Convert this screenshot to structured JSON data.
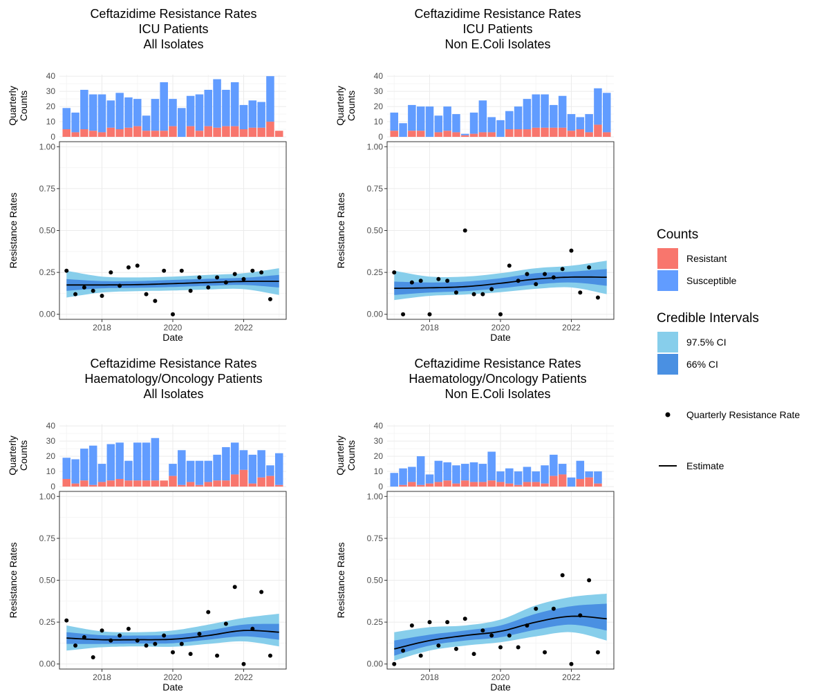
{
  "colors": {
    "resistant": "#F8766D",
    "susceptible": "#619CFF",
    "ci975": "#87CEEB",
    "ci66": "#4A90E2",
    "estimate": "#000000",
    "grid_major": "#EBEBEB",
    "grid_minor": "#F5F5F5"
  },
  "legend": {
    "counts_title": "Counts",
    "resistant_label": "Resistant",
    "susceptible_label": "Susceptible",
    "ci_title": "Credible Intervals",
    "ci975_label": "97.5% CI",
    "ci66_label": "66% CI",
    "points_label": "Quarterly Resistance Rate",
    "estimate_label": "Estimate"
  },
  "chart_data": [
    {
      "type": "bar+line",
      "title": [
        "Ceftazidime Resistance Rates",
        "ICU Patients",
        "All Isolates"
      ],
      "bar_ylabel": [
        "Quarterly",
        "Counts"
      ],
      "xlabel": "Date",
      "ylabel": "Resistance Rates",
      "x_ticks": [
        "2018",
        "2020",
        "2022"
      ],
      "bar_yticks": [
        "0",
        "10",
        "20",
        "30",
        "40"
      ],
      "rate_yticks": [
        "0.00",
        "0.25",
        "0.50",
        "0.75",
        "1.00"
      ],
      "xlim": [
        2016.8,
        2023.2
      ],
      "bar_ylim": [
        0,
        41
      ],
      "rate_ylim": [
        -0.03,
        1.03
      ],
      "quarters": [
        2017.0,
        2017.25,
        2017.5,
        2017.75,
        2018.0,
        2018.25,
        2018.5,
        2018.75,
        2019.0,
        2019.25,
        2019.5,
        2019.75,
        2020.0,
        2020.25,
        2020.5,
        2020.75,
        2021.0,
        2021.25,
        2021.5,
        2021.75,
        2022.0,
        2022.25,
        2022.5,
        2022.75,
        2023.0
      ],
      "resistant": [
        5,
        3,
        5,
        4,
        3,
        6,
        5,
        6,
        7,
        4,
        4,
        4,
        7,
        0,
        7,
        4,
        7,
        6,
        7,
        7,
        5,
        6,
        6,
        10,
        4
      ],
      "susceptible": [
        14,
        13,
        26,
        24,
        25,
        18,
        24,
        20,
        18,
        10,
        21,
        32,
        18,
        19,
        20,
        24,
        24,
        32,
        24,
        29,
        16,
        18,
        17,
        30,
        0
      ],
      "points": [
        [
          2017.0,
          0.26
        ],
        [
          2017.25,
          0.12
        ],
        [
          2017.5,
          0.16
        ],
        [
          2017.75,
          0.14
        ],
        [
          2018.0,
          0.11
        ],
        [
          2018.25,
          0.25
        ],
        [
          2018.5,
          0.17
        ],
        [
          2018.75,
          0.28
        ],
        [
          2019.0,
          0.29
        ],
        [
          2019.25,
          0.12
        ],
        [
          2019.5,
          0.08
        ],
        [
          2019.75,
          0.26
        ],
        [
          2020.0,
          0.0
        ],
        [
          2020.25,
          0.26
        ],
        [
          2020.5,
          0.14
        ],
        [
          2020.75,
          0.22
        ],
        [
          2021.0,
          0.16
        ],
        [
          2021.25,
          0.22
        ],
        [
          2021.5,
          0.19
        ],
        [
          2021.75,
          0.24
        ],
        [
          2022.0,
          0.21
        ],
        [
          2022.25,
          0.26
        ],
        [
          2022.5,
          0.25
        ],
        [
          2022.75,
          0.09
        ]
      ],
      "estimate": [
        [
          2017.0,
          0.175
        ],
        [
          2018.0,
          0.175
        ],
        [
          2019.0,
          0.177
        ],
        [
          2020.0,
          0.183
        ],
        [
          2021.0,
          0.19
        ],
        [
          2022.0,
          0.196
        ],
        [
          2023.0,
          0.197
        ]
      ],
      "ci66": [
        [
          2017.0,
          0.14,
          0.21
        ],
        [
          2018.0,
          0.155,
          0.198
        ],
        [
          2019.0,
          0.158,
          0.198
        ],
        [
          2020.0,
          0.163,
          0.205
        ],
        [
          2021.0,
          0.17,
          0.212
        ],
        [
          2022.0,
          0.175,
          0.218
        ],
        [
          2023.0,
          0.16,
          0.235
        ]
      ],
      "ci975": [
        [
          2017.0,
          0.1,
          0.26
        ],
        [
          2018.0,
          0.13,
          0.225
        ],
        [
          2019.0,
          0.138,
          0.22
        ],
        [
          2020.0,
          0.142,
          0.225
        ],
        [
          2021.0,
          0.148,
          0.235
        ],
        [
          2022.0,
          0.15,
          0.245
        ],
        [
          2023.0,
          0.115,
          0.275
        ]
      ]
    },
    {
      "type": "bar+line",
      "title": [
        "Ceftazidime Resistance Rates",
        "ICU Patients",
        "Non E.Coli Isolates"
      ],
      "bar_ylabel": [
        "Quarterly",
        "Counts"
      ],
      "xlabel": "Date",
      "ylabel": "Resistance Rates",
      "x_ticks": [
        "2018",
        "2020",
        "2022"
      ],
      "bar_yticks": [
        "0",
        "10",
        "20",
        "30",
        "40"
      ],
      "rate_yticks": [
        "0.00",
        "0.25",
        "0.50",
        "0.75",
        "1.00"
      ],
      "xlim": [
        2016.8,
        2023.2
      ],
      "bar_ylim": [
        0,
        41
      ],
      "rate_ylim": [
        -0.03,
        1.03
      ],
      "quarters": [
        2017.0,
        2017.25,
        2017.5,
        2017.75,
        2018.0,
        2018.25,
        2018.5,
        2018.75,
        2019.0,
        2019.25,
        2019.5,
        2019.75,
        2020.0,
        2020.25,
        2020.5,
        2020.75,
        2021.0,
        2021.25,
        2021.5,
        2021.75,
        2022.0,
        2022.25,
        2022.5,
        2022.75,
        2023.0
      ],
      "resistant": [
        4,
        0,
        4,
        4,
        0,
        3,
        4,
        3,
        1,
        2,
        3,
        3,
        0,
        5,
        5,
        5,
        6,
        6,
        6,
        6,
        4,
        5,
        3,
        8,
        3
      ],
      "susceptible": [
        12,
        9,
        17,
        16,
        20,
        11,
        16,
        12,
        1,
        14,
        21,
        10,
        11,
        12,
        15,
        20,
        22,
        22,
        15,
        21,
        11,
        8,
        12,
        24,
        26
      ],
      "points": [
        [
          2017.0,
          0.25
        ],
        [
          2017.25,
          0.0
        ],
        [
          2017.5,
          0.19
        ],
        [
          2017.75,
          0.2
        ],
        [
          2018.0,
          0.0
        ],
        [
          2018.25,
          0.21
        ],
        [
          2018.5,
          0.2
        ],
        [
          2018.75,
          0.13
        ],
        [
          2019.0,
          0.5
        ],
        [
          2019.25,
          0.12
        ],
        [
          2019.5,
          0.12
        ],
        [
          2019.75,
          0.15
        ],
        [
          2020.0,
          0.0
        ],
        [
          2020.25,
          0.29
        ],
        [
          2020.5,
          0.2
        ],
        [
          2020.75,
          0.24
        ],
        [
          2021.0,
          0.18
        ],
        [
          2021.25,
          0.24
        ],
        [
          2021.5,
          0.22
        ],
        [
          2021.75,
          0.27
        ],
        [
          2022.0,
          0.38
        ],
        [
          2022.25,
          0.13
        ],
        [
          2022.5,
          0.28
        ],
        [
          2022.75,
          0.1
        ]
      ],
      "estimate": [
        [
          2017.0,
          0.155
        ],
        [
          2018.0,
          0.158
        ],
        [
          2019.0,
          0.165
        ],
        [
          2020.0,
          0.185
        ],
        [
          2021.0,
          0.21
        ],
        [
          2022.0,
          0.222
        ],
        [
          2023.0,
          0.221
        ]
      ],
      "ci66": [
        [
          2017.0,
          0.115,
          0.195
        ],
        [
          2018.0,
          0.13,
          0.19
        ],
        [
          2019.0,
          0.138,
          0.195
        ],
        [
          2020.0,
          0.155,
          0.215
        ],
        [
          2021.0,
          0.178,
          0.245
        ],
        [
          2022.0,
          0.19,
          0.255
        ],
        [
          2023.0,
          0.17,
          0.27
        ]
      ],
      "ci975": [
        [
          2017.0,
          0.085,
          0.26
        ],
        [
          2018.0,
          0.11,
          0.225
        ],
        [
          2019.0,
          0.118,
          0.225
        ],
        [
          2020.0,
          0.132,
          0.245
        ],
        [
          2021.0,
          0.152,
          0.275
        ],
        [
          2022.0,
          0.16,
          0.29
        ],
        [
          2023.0,
          0.12,
          0.32
        ]
      ]
    },
    {
      "type": "bar+line",
      "title": [
        "Ceftazidime Resistance Rates",
        "Haematology/Oncology Patients",
        "All Isolates"
      ],
      "bar_ylabel": [
        "Quarterly",
        "Counts"
      ],
      "xlabel": "Date",
      "ylabel": "Resistance Rates",
      "x_ticks": [
        "2018",
        "2020",
        "2022"
      ],
      "bar_yticks": [
        "0",
        "10",
        "20",
        "30",
        "40"
      ],
      "rate_yticks": [
        "0.00",
        "0.25",
        "0.50",
        "0.75",
        "1.00"
      ],
      "xlim": [
        2016.8,
        2023.2
      ],
      "bar_ylim": [
        0,
        41
      ],
      "rate_ylim": [
        -0.03,
        1.03
      ],
      "quarters": [
        2017.0,
        2017.25,
        2017.5,
        2017.75,
        2018.0,
        2018.25,
        2018.5,
        2018.75,
        2019.0,
        2019.25,
        2019.5,
        2019.75,
        2020.0,
        2020.25,
        2020.5,
        2020.75,
        2021.0,
        2021.25,
        2021.5,
        2021.75,
        2022.0,
        2022.25,
        2022.5,
        2022.75,
        2023.0
      ],
      "resistant": [
        5,
        2,
        4,
        1,
        3,
        4,
        5,
        4,
        4,
        4,
        4,
        4,
        7,
        1,
        3,
        1,
        3,
        4,
        4,
        8,
        11,
        2,
        6,
        7,
        1
      ],
      "susceptible": [
        14,
        16,
        21,
        26,
        12,
        24,
        24,
        13,
        25,
        25,
        28,
        0,
        8,
        23,
        14,
        16,
        14,
        17,
        22,
        21,
        13,
        19,
        18,
        7,
        21
      ],
      "points": [
        [
          2017.0,
          0.26
        ],
        [
          2017.25,
          0.11
        ],
        [
          2017.5,
          0.16
        ],
        [
          2017.75,
          0.04
        ],
        [
          2018.0,
          0.2
        ],
        [
          2018.25,
          0.14
        ],
        [
          2018.5,
          0.17
        ],
        [
          2018.75,
          0.21
        ],
        [
          2019.0,
          0.14
        ],
        [
          2019.25,
          0.11
        ],
        [
          2019.5,
          0.12
        ],
        [
          2019.75,
          0.17
        ],
        [
          2020.0,
          0.07
        ],
        [
          2020.25,
          0.12
        ],
        [
          2020.5,
          0.06
        ],
        [
          2020.75,
          0.18
        ],
        [
          2021.0,
          0.31
        ],
        [
          2021.25,
          0.05
        ],
        [
          2021.5,
          0.24
        ],
        [
          2021.75,
          0.46
        ],
        [
          2022.0,
          0.0
        ],
        [
          2022.25,
          0.21
        ],
        [
          2022.5,
          0.43
        ],
        [
          2022.75,
          0.05
        ]
      ],
      "estimate": [
        [
          2017.0,
          0.155
        ],
        [
          2018.0,
          0.145
        ],
        [
          2019.0,
          0.145
        ],
        [
          2020.0,
          0.148
        ],
        [
          2021.0,
          0.17
        ],
        [
          2022.0,
          0.2
        ],
        [
          2023.0,
          0.19
        ]
      ],
      "ci66": [
        [
          2017.0,
          0.12,
          0.19
        ],
        [
          2018.0,
          0.12,
          0.172
        ],
        [
          2019.0,
          0.122,
          0.17
        ],
        [
          2020.0,
          0.124,
          0.175
        ],
        [
          2021.0,
          0.145,
          0.2
        ],
        [
          2022.0,
          0.165,
          0.235
        ],
        [
          2023.0,
          0.145,
          0.24
        ]
      ],
      "ci975": [
        [
          2017.0,
          0.08,
          0.23
        ],
        [
          2018.0,
          0.1,
          0.195
        ],
        [
          2019.0,
          0.105,
          0.19
        ],
        [
          2020.0,
          0.103,
          0.2
        ],
        [
          2021.0,
          0.12,
          0.235
        ],
        [
          2022.0,
          0.135,
          0.275
        ],
        [
          2023.0,
          0.105,
          0.3
        ]
      ]
    },
    {
      "type": "bar+line",
      "title": [
        "Ceftazidime Resistance Rates",
        "Haematology/Oncology Patients",
        "Non E.Coli Isolates"
      ],
      "bar_ylabel": [
        "Quarterly",
        "Counts"
      ],
      "xlabel": "Date",
      "ylabel": "Resistance Rates",
      "x_ticks": [
        "2018",
        "2020",
        "2022"
      ],
      "bar_yticks": [
        "0",
        "10",
        "20",
        "30",
        "40"
      ],
      "rate_yticks": [
        "0.00",
        "0.25",
        "0.50",
        "0.75",
        "1.00"
      ],
      "xlim": [
        2016.8,
        2023.2
      ],
      "bar_ylim": [
        0,
        41
      ],
      "rate_ylim": [
        -0.03,
        1.03
      ],
      "quarters": [
        2017.0,
        2017.25,
        2017.5,
        2017.75,
        2018.0,
        2018.25,
        2018.5,
        2018.75,
        2019.0,
        2019.25,
        2019.5,
        2019.75,
        2020.0,
        2020.25,
        2020.5,
        2020.75,
        2021.0,
        2021.25,
        2021.5,
        2021.75,
        2022.0,
        2022.25,
        2022.5,
        2022.75
      ],
      "resistant": [
        0,
        1,
        3,
        1,
        2,
        3,
        4,
        2,
        4,
        3,
        3,
        4,
        3,
        2,
        1,
        3,
        3,
        2,
        7,
        8,
        0,
        5,
        6,
        2
      ],
      "susceptible": [
        9,
        11,
        10,
        19,
        6,
        14,
        12,
        12,
        11,
        13,
        12,
        19,
        7,
        10,
        9,
        10,
        7,
        12,
        14,
        7,
        6,
        12,
        4,
        8
      ],
      "points": [
        [
          2017.0,
          0.0
        ],
        [
          2017.25,
          0.08
        ],
        [
          2017.5,
          0.23
        ],
        [
          2017.75,
          0.05
        ],
        [
          2018.0,
          0.25
        ],
        [
          2018.25,
          0.11
        ],
        [
          2018.5,
          0.25
        ],
        [
          2018.75,
          0.09
        ],
        [
          2019.0,
          0.27
        ],
        [
          2019.25,
          0.06
        ],
        [
          2019.5,
          0.2
        ],
        [
          2019.75,
          0.17
        ],
        [
          2020.0,
          0.1
        ],
        [
          2020.25,
          0.17
        ],
        [
          2020.5,
          0.1
        ],
        [
          2020.75,
          0.23
        ],
        [
          2021.0,
          0.33
        ],
        [
          2021.25,
          0.07
        ],
        [
          2021.5,
          0.33
        ],
        [
          2021.75,
          0.53
        ],
        [
          2022.0,
          0.0
        ],
        [
          2022.25,
          0.29
        ],
        [
          2022.5,
          0.5
        ],
        [
          2022.75,
          0.07
        ]
      ],
      "estimate": [
        [
          2017.0,
          0.09
        ],
        [
          2018.0,
          0.14
        ],
        [
          2019.0,
          0.17
        ],
        [
          2020.0,
          0.195
        ],
        [
          2021.0,
          0.25
        ],
        [
          2022.0,
          0.285
        ],
        [
          2023.0,
          0.27
        ]
      ],
      "ci66": [
        [
          2017.0,
          0.05,
          0.14
        ],
        [
          2018.0,
          0.11,
          0.175
        ],
        [
          2019.0,
          0.14,
          0.2
        ],
        [
          2020.0,
          0.16,
          0.23
        ],
        [
          2021.0,
          0.205,
          0.3
        ],
        [
          2022.0,
          0.235,
          0.345
        ],
        [
          2023.0,
          0.2,
          0.36
        ]
      ],
      "ci975": [
        [
          2017.0,
          0.02,
          0.19
        ],
        [
          2018.0,
          0.08,
          0.22
        ],
        [
          2019.0,
          0.11,
          0.23
        ],
        [
          2020.0,
          0.13,
          0.265
        ],
        [
          2021.0,
          0.165,
          0.35
        ],
        [
          2022.0,
          0.19,
          0.4
        ],
        [
          2023.0,
          0.14,
          0.42
        ]
      ]
    }
  ]
}
